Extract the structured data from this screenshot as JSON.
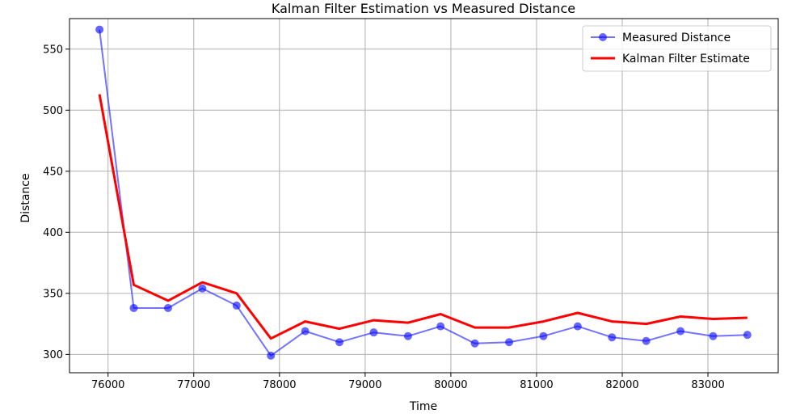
{
  "chart_data": {
    "type": "line",
    "title": "Kalman Filter Estimation vs Measured Distance",
    "xlabel": "Time",
    "ylabel": "Distance",
    "xlim": [
      75550,
      83820
    ],
    "ylim": [
      285,
      575
    ],
    "xticks": [
      76000,
      77000,
      78000,
      79000,
      80000,
      81000,
      82000,
      83000
    ],
    "yticks": [
      300,
      350,
      400,
      450,
      500,
      550
    ],
    "grid": true,
    "legend_position": "top-right",
    "series": [
      {
        "name": "Measured Distance",
        "color": "#0000ff",
        "style": "line-marker",
        "x": [
          75900,
          76300,
          76700,
          77100,
          77500,
          77900,
          78300,
          78700,
          79100,
          79500,
          79880,
          80280,
          80680,
          81080,
          81480,
          81880,
          82280,
          82680,
          83060,
          83460
        ],
        "values": [
          566,
          338,
          338,
          354,
          340,
          299,
          319,
          310,
          318,
          315,
          323,
          309,
          310,
          315,
          323,
          314,
          311,
          319,
          315,
          316
        ]
      },
      {
        "name": "Kalman Filter Estimate",
        "color": "#ff0000",
        "style": "line",
        "x": [
          75900,
          76300,
          76700,
          77100,
          77500,
          77900,
          78300,
          78700,
          79100,
          79500,
          79880,
          80280,
          80680,
          81080,
          81480,
          81880,
          82280,
          82680,
          83060,
          83460
        ],
        "values": [
          513,
          357,
          344,
          359,
          350,
          313,
          327,
          321,
          328,
          326,
          333,
          322,
          322,
          327,
          334,
          327,
          325,
          331,
          329,
          330
        ]
      }
    ]
  }
}
